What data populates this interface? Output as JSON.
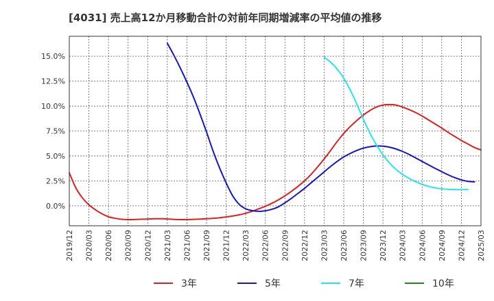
{
  "chart_data": {
    "type": "line",
    "title": "[4031]  売上高12か月移動合計の対前年同期増減率の平均値の推移",
    "xlabel": "",
    "ylabel": "",
    "x_ticks": [
      "2019/12",
      "2020/03",
      "2020/06",
      "2020/09",
      "2020/12",
      "2021/03",
      "2021/06",
      "2021/09",
      "2021/12",
      "2022/03",
      "2022/06",
      "2022/09",
      "2022/12",
      "2023/03",
      "2023/06",
      "2023/09",
      "2023/12",
      "2024/03",
      "2024/06",
      "2024/09",
      "2024/12",
      "2025/03"
    ],
    "y_ticks": [
      "0.0%",
      "2.5%",
      "5.0%",
      "7.5%",
      "10.0%",
      "12.5%",
      "15.0%"
    ],
    "y_tick_values": [
      0,
      2.5,
      5,
      7.5,
      10,
      12.5,
      15
    ],
    "ylim": [
      -2.0,
      17.0
    ],
    "xlim_months": [
      0,
      63
    ],
    "grid": true,
    "legend_position": "bottom",
    "series": [
      {
        "name": "3年",
        "color": "#dd1f1f",
        "points": [
          [
            0,
            3.3
          ],
          [
            1,
            1.8
          ],
          [
            2,
            0.8
          ],
          [
            3,
            0.1
          ],
          [
            4,
            -0.4
          ],
          [
            5,
            -0.8
          ],
          [
            6,
            -1.1
          ],
          [
            7,
            -1.25
          ],
          [
            8,
            -1.35
          ],
          [
            9,
            -1.38
          ],
          [
            10,
            -1.37
          ],
          [
            11,
            -1.35
          ],
          [
            12,
            -1.33
          ],
          [
            13,
            -1.3
          ],
          [
            14,
            -1.3
          ],
          [
            15,
            -1.32
          ],
          [
            16,
            -1.36
          ],
          [
            17,
            -1.38
          ],
          [
            18,
            -1.38
          ],
          [
            19,
            -1.36
          ],
          [
            20,
            -1.33
          ],
          [
            21,
            -1.3
          ],
          [
            22,
            -1.25
          ],
          [
            23,
            -1.2
          ],
          [
            24,
            -1.12
          ],
          [
            25,
            -1.02
          ],
          [
            26,
            -0.9
          ],
          [
            27,
            -0.75
          ],
          [
            28,
            -0.55
          ],
          [
            29,
            -0.3
          ],
          [
            30,
            -0.05
          ],
          [
            31,
            0.25
          ],
          [
            32,
            0.6
          ],
          [
            33,
            1.0
          ],
          [
            34,
            1.45
          ],
          [
            35,
            1.95
          ],
          [
            36,
            2.5
          ],
          [
            37,
            3.15
          ],
          [
            38,
            3.9
          ],
          [
            39,
            4.7
          ],
          [
            40,
            5.55
          ],
          [
            41,
            6.45
          ],
          [
            42,
            7.25
          ],
          [
            43,
            7.95
          ],
          [
            44,
            8.55
          ],
          [
            45,
            9.1
          ],
          [
            46,
            9.55
          ],
          [
            47,
            9.9
          ],
          [
            48,
            10.1
          ],
          [
            49,
            10.15
          ],
          [
            50,
            10.1
          ],
          [
            51,
            9.9
          ],
          [
            52,
            9.65
          ],
          [
            53,
            9.35
          ],
          [
            54,
            9.0
          ],
          [
            55,
            8.6
          ],
          [
            56,
            8.2
          ],
          [
            57,
            7.8
          ],
          [
            58,
            7.35
          ],
          [
            59,
            6.95
          ],
          [
            60,
            6.55
          ],
          [
            61,
            6.2
          ],
          [
            62,
            5.85
          ],
          [
            63,
            5.6
          ]
        ]
      },
      {
        "name": "5年",
        "color": "#1414c8",
        "points": [
          [
            15,
            16.3
          ],
          [
            16,
            15.1
          ],
          [
            17,
            13.8
          ],
          [
            18,
            12.4
          ],
          [
            19,
            10.9
          ],
          [
            20,
            9.2
          ],
          [
            21,
            7.4
          ],
          [
            22,
            5.5
          ],
          [
            23,
            3.8
          ],
          [
            24,
            2.3
          ],
          [
            25,
            1.0
          ],
          [
            26,
            0.15
          ],
          [
            27,
            -0.3
          ],
          [
            28,
            -0.48
          ],
          [
            29,
            -0.55
          ],
          [
            30,
            -0.5
          ],
          [
            31,
            -0.35
          ],
          [
            32,
            -0.1
          ],
          [
            33,
            0.3
          ],
          [
            34,
            0.75
          ],
          [
            35,
            1.25
          ],
          [
            36,
            1.75
          ],
          [
            37,
            2.3
          ],
          [
            38,
            2.85
          ],
          [
            39,
            3.4
          ],
          [
            40,
            3.95
          ],
          [
            41,
            4.45
          ],
          [
            42,
            4.9
          ],
          [
            43,
            5.25
          ],
          [
            44,
            5.55
          ],
          [
            45,
            5.78
          ],
          [
            46,
            5.92
          ],
          [
            47,
            6.0
          ],
          [
            48,
            5.98
          ],
          [
            49,
            5.88
          ],
          [
            50,
            5.7
          ],
          [
            51,
            5.45
          ],
          [
            52,
            5.15
          ],
          [
            53,
            4.8
          ],
          [
            54,
            4.45
          ],
          [
            55,
            4.1
          ],
          [
            56,
            3.75
          ],
          [
            57,
            3.42
          ],
          [
            58,
            3.1
          ],
          [
            59,
            2.82
          ],
          [
            60,
            2.6
          ],
          [
            61,
            2.45
          ],
          [
            62,
            2.4
          ]
        ]
      },
      {
        "name": "7年",
        "color": "#22e6ec",
        "points": [
          [
            39,
            14.9
          ],
          [
            40,
            14.4
          ],
          [
            41,
            13.7
          ],
          [
            42,
            12.8
          ],
          [
            43,
            11.6
          ],
          [
            44,
            10.2
          ],
          [
            45,
            8.7
          ],
          [
            46,
            7.3
          ],
          [
            47,
            6.1
          ],
          [
            48,
            5.1
          ],
          [
            49,
            4.3
          ],
          [
            50,
            3.65
          ],
          [
            51,
            3.15
          ],
          [
            52,
            2.75
          ],
          [
            53,
            2.42
          ],
          [
            54,
            2.15
          ],
          [
            55,
            1.95
          ],
          [
            56,
            1.8
          ],
          [
            57,
            1.7
          ],
          [
            58,
            1.65
          ],
          [
            59,
            1.63
          ],
          [
            60,
            1.62
          ],
          [
            61,
            1.63
          ]
        ]
      },
      {
        "name": "10年",
        "color": "#1a8a1a",
        "points": []
      }
    ]
  }
}
